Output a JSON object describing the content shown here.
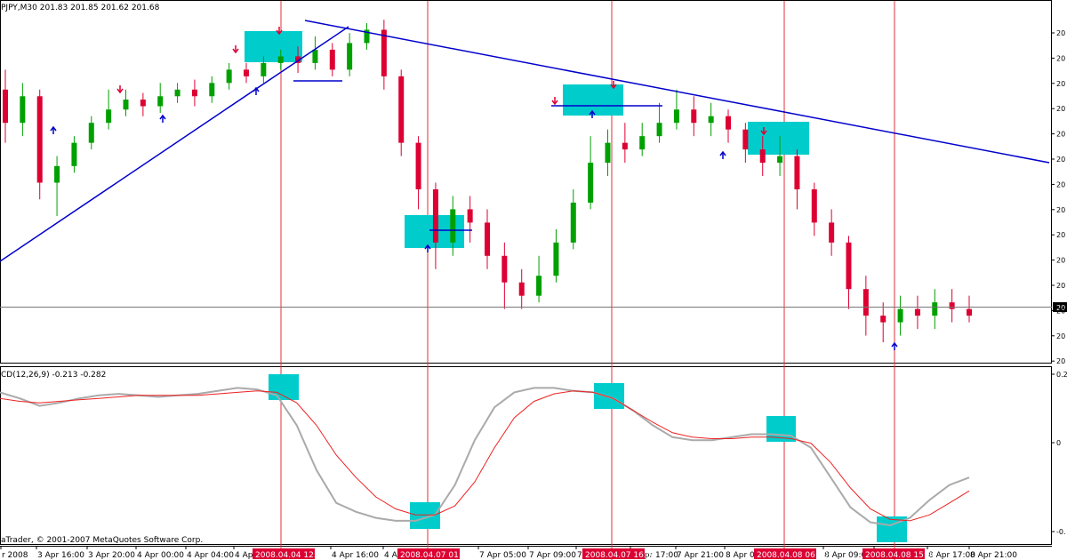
{
  "window": {
    "symbol_tf": "PJPY,M30",
    "ohlc": "201.83 201.85 201.62 201.68",
    "copyright": "aTrader, © 2001-2007 MetaQuotes Software Corp."
  },
  "price_axis_labels": [
    "20",
    "20",
    "20",
    "20",
    "20",
    "20",
    "20",
    "20",
    "20",
    "20",
    "20",
    "20",
    "20",
    "20"
  ],
  "current_price_label": "20",
  "macd_axis_labels": [
    "0.2",
    "0",
    "-0."
  ],
  "indicator": {
    "label": "CD(12,26,9) -0.213 -0.282"
  },
  "colors": {
    "bull": "#00a000",
    "bear": "#dd0033",
    "trendline": "#0000cc",
    "highlight": "#00cccc",
    "vline": "#e0303a",
    "macd_main": "#aaaaaa",
    "macd_signal": "#ee2222"
  },
  "time_axis": {
    "labels": [
      "r 2008",
      "3 Apr 16:00",
      "3 Apr 20:00",
      "4 Apr 00:00",
      "4 Apr 04:00",
      "4 Apr",
      "4 Apr 16:00",
      "4 Apr",
      "7 Apr 05:00",
      "7 Apr 09:00",
      "7",
      "7 Apr 17:00",
      "7 Apr 21:00",
      "8 Apr 01:00",
      "8 Apr 09:00",
      "8 Apr",
      "8 Apr 17:00",
      "8 Apr 21:00"
    ],
    "highlighted": [
      "2008.04.04 12:00",
      "2008.04.07 01:00",
      "2008.04.07 16:00",
      "2008.04.08 06:00",
      "2008.04.08 15:00"
    ]
  },
  "chart_data": {
    "type": "candlestick",
    "symbol": "PJPY",
    "timeframe": "M30",
    "price_axis": "unlabeled (tick labels truncated to '20')",
    "candles": [
      [
        1,
        0.8,
        0.7,
        0.86,
        0.64
      ],
      [
        1,
        0.7,
        0.78,
        0.82,
        0.66
      ],
      [
        1,
        0.78,
        0.52,
        0.8,
        0.47
      ],
      [
        1,
        0.52,
        0.57,
        0.6,
        0.42
      ],
      [
        1,
        0.57,
        0.64,
        0.66,
        0.55
      ],
      [
        1,
        0.64,
        0.7,
        0.72,
        0.62
      ],
      [
        1,
        0.7,
        0.74,
        0.8,
        0.68
      ],
      [
        1,
        0.74,
        0.77,
        0.8,
        0.72
      ],
      [
        1,
        0.77,
        0.75,
        0.79,
        0.72
      ],
      [
        1,
        0.75,
        0.78,
        0.82,
        0.73
      ],
      [
        1,
        0.78,
        0.8,
        0.82,
        0.76
      ],
      [
        1,
        0.8,
        0.78,
        0.83,
        0.75
      ],
      [
        1,
        0.78,
        0.82,
        0.84,
        0.76
      ],
      [
        1,
        0.82,
        0.86,
        0.88,
        0.8
      ],
      [
        1,
        0.86,
        0.84,
        0.88,
        0.82
      ],
      [
        1,
        0.84,
        0.88,
        0.9,
        0.82
      ],
      [
        1,
        0.88,
        0.9,
        0.92,
        0.86
      ],
      [
        1,
        0.9,
        0.88,
        0.93,
        0.85
      ],
      [
        1,
        0.88,
        0.92,
        0.96,
        0.86
      ],
      [
        1,
        0.92,
        0.86,
        0.94,
        0.84
      ],
      [
        1,
        0.86,
        0.94,
        0.97,
        0.84
      ],
      [
        1,
        0.94,
        0.98,
        1.0,
        0.92
      ],
      [
        1,
        0.98,
        0.84,
        1.01,
        0.8
      ],
      [
        1,
        0.84,
        0.64,
        0.86,
        0.6
      ],
      [
        1,
        0.64,
        0.5,
        0.66,
        0.44
      ],
      [
        1,
        0.5,
        0.34,
        0.52,
        0.26
      ],
      [
        1,
        0.34,
        0.44,
        0.48,
        0.3
      ],
      [
        1,
        0.44,
        0.4,
        0.48,
        0.34
      ],
      [
        1,
        0.4,
        0.3,
        0.44,
        0.26
      ],
      [
        1,
        0.3,
        0.22,
        0.34,
        0.14
      ],
      [
        1,
        0.22,
        0.18,
        0.26,
        0.14
      ],
      [
        1,
        0.18,
        0.24,
        0.3,
        0.16
      ],
      [
        1,
        0.24,
        0.34,
        0.38,
        0.22
      ],
      [
        1,
        0.34,
        0.46,
        0.5,
        0.32
      ],
      [
        1,
        0.46,
        0.58,
        0.66,
        0.44
      ],
      [
        1,
        0.58,
        0.64,
        0.68,
        0.54
      ],
      [
        1,
        0.64,
        0.62,
        0.7,
        0.58
      ],
      [
        1,
        0.62,
        0.66,
        0.7,
        0.6
      ],
      [
        1,
        0.66,
        0.7,
        0.76,
        0.64
      ],
      [
        1,
        0.7,
        0.74,
        0.8,
        0.68
      ],
      [
        1,
        0.74,
        0.7,
        0.78,
        0.66
      ],
      [
        1,
        0.7,
        0.72,
        0.76,
        0.66
      ],
      [
        1,
        0.72,
        0.68,
        0.74,
        0.64
      ],
      [
        1,
        0.68,
        0.62,
        0.7,
        0.58
      ],
      [
        1,
        0.62,
        0.58,
        0.66,
        0.54
      ],
      [
        1,
        0.58,
        0.6,
        0.66,
        0.54
      ],
      [
        1,
        0.6,
        0.5,
        0.62,
        0.44
      ],
      [
        1,
        0.5,
        0.4,
        0.52,
        0.36
      ],
      [
        1,
        0.4,
        0.34,
        0.44,
        0.3
      ],
      [
        1,
        0.34,
        0.2,
        0.36,
        0.14
      ],
      [
        1,
        0.2,
        0.12,
        0.24,
        0.06
      ],
      [
        1,
        0.12,
        0.1,
        0.16,
        0.04
      ],
      [
        1,
        0.1,
        0.14,
        0.18,
        0.06
      ],
      [
        1,
        0.14,
        0.12,
        0.18,
        0.08
      ],
      [
        1,
        0.12,
        0.16,
        0.2,
        0.08
      ],
      [
        1,
        0.16,
        0.14,
        0.2,
        0.1
      ],
      [
        1,
        0.14,
        0.12,
        0.18,
        0.1
      ]
    ],
    "candle_format": "[index_unused, open, close, high, low] as fraction of visible price range",
    "macd": {
      "label": "CD(12,26,9) -0.213 -0.282",
      "main": [
        0.92,
        0.88,
        0.83,
        0.85,
        0.88,
        0.9,
        0.91,
        0.9,
        0.89,
        0.9,
        0.91,
        0.93,
        0.95,
        0.94,
        0.9,
        0.7,
        0.4,
        0.18,
        0.12,
        0.08,
        0.06,
        0.06,
        0.1,
        0.3,
        0.6,
        0.82,
        0.92,
        0.95,
        0.95,
        0.93,
        0.92,
        0.88,
        0.8,
        0.7,
        0.62,
        0.6,
        0.6,
        0.62,
        0.64,
        0.64,
        0.63,
        0.55,
        0.35,
        0.15,
        0.05,
        0.03,
        0.08,
        0.2,
        0.3,
        0.35
      ],
      "signal": [
        0.88,
        0.86,
        0.85,
        0.86,
        0.87,
        0.88,
        0.89,
        0.9,
        0.9,
        0.9,
        0.9,
        0.91,
        0.92,
        0.93,
        0.92,
        0.85,
        0.7,
        0.5,
        0.35,
        0.22,
        0.14,
        0.1,
        0.1,
        0.16,
        0.32,
        0.55,
        0.75,
        0.86,
        0.91,
        0.93,
        0.92,
        0.88,
        0.8,
        0.72,
        0.65,
        0.62,
        0.61,
        0.61,
        0.62,
        0.62,
        0.61,
        0.58,
        0.45,
        0.28,
        0.14,
        0.07,
        0.06,
        0.1,
        0.18,
        0.26
      ]
    }
  }
}
